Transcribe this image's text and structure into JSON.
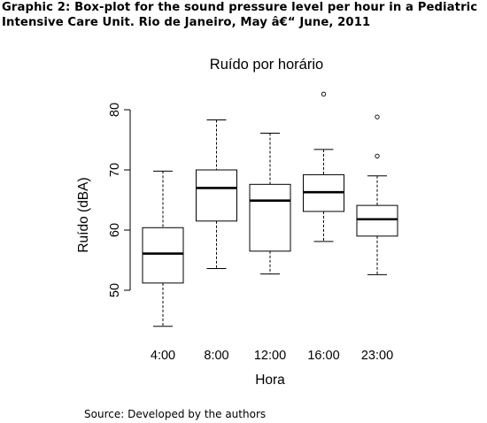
{
  "caption": {
    "line1": "Graphic 2: Box-plot for the sound pressure level per hour in a Pediatric",
    "line2": "Intensive Care Unit. Rio de Janeiro, May â€“ June, 2011"
  },
  "source": "Source: Developed by the authors",
  "chart_data": {
    "type": "box",
    "title": "Ruído por horário",
    "xlabel": "Hora",
    "ylabel": "Ruído (dBA)",
    "yticks": [
      50,
      60,
      70,
      80
    ],
    "ylim": [
      43.5,
      83
    ],
    "grid": false,
    "categories": [
      "4:00",
      "8:00",
      "12:00",
      "16:00",
      "23:00"
    ],
    "boxes": [
      {
        "category": "4:00",
        "whisker_low": 44.0,
        "q1": 51.2,
        "median": 56.1,
        "q3": 60.4,
        "whisker_high": 69.8,
        "outliers": []
      },
      {
        "category": "8:00",
        "whisker_low": 53.6,
        "q1": 61.5,
        "median": 67.0,
        "q3": 70.0,
        "whisker_high": 78.3,
        "outliers": []
      },
      {
        "category": "12:00",
        "whisker_low": 52.7,
        "q1": 56.5,
        "median": 64.9,
        "q3": 67.6,
        "whisker_high": 76.1,
        "outliers": []
      },
      {
        "category": "16:00",
        "whisker_low": 58.1,
        "q1": 63.1,
        "median": 66.3,
        "q3": 69.2,
        "whisker_high": 73.4,
        "outliers": [
          82.6
        ]
      },
      {
        "category": "23:00",
        "whisker_low": 52.6,
        "q1": 59.0,
        "median": 61.8,
        "q3": 64.1,
        "whisker_high": 69.0,
        "outliers": [
          72.3,
          78.8
        ]
      }
    ]
  }
}
